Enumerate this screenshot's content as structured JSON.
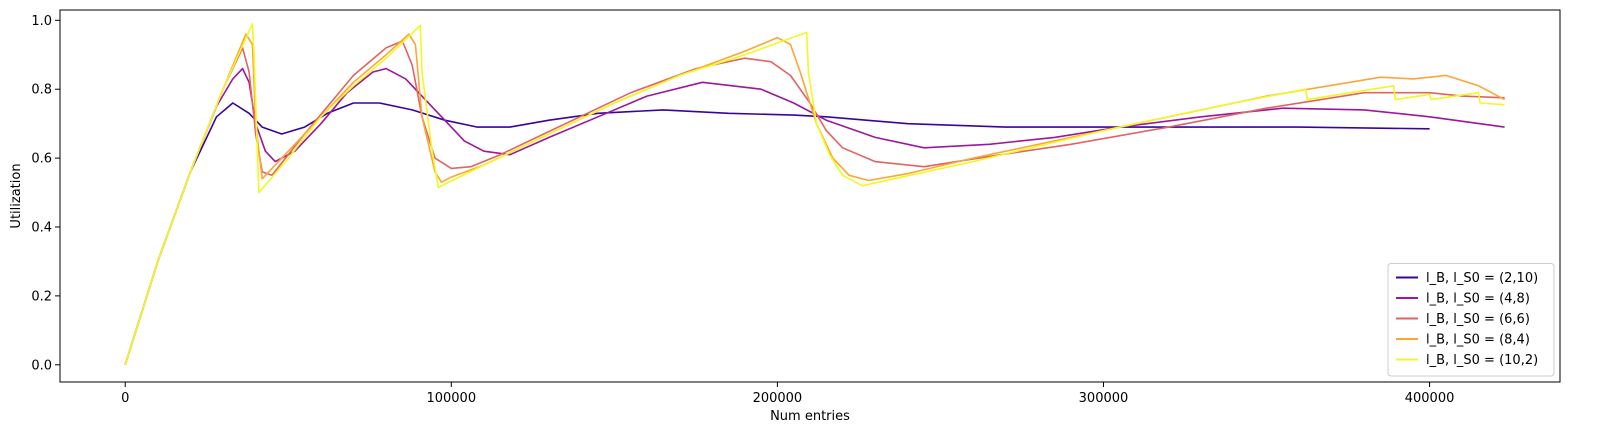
{
  "chart_data": {
    "type": "line",
    "title": "",
    "xlabel": "Num entries",
    "ylabel": "Utilization",
    "xlim": [
      -20000,
      440000
    ],
    "ylim": [
      -0.05,
      1.03
    ],
    "xticks": [
      0,
      100000,
      200000,
      300000,
      400000
    ],
    "yticks": [
      0.0,
      0.2,
      0.4,
      0.6,
      0.8,
      1.0
    ],
    "xtick_labels": [
      "0",
      "100000",
      "200000",
      "300000",
      "400000"
    ],
    "ytick_labels": [
      "0.0",
      "0.2",
      "0.4",
      "0.6",
      "0.8",
      "1.0"
    ],
    "grid": false,
    "legend_position": "lower-right",
    "series": [
      {
        "name": "l_B, l_S0 = (2,10)",
        "color": "#3a049a",
        "x": [
          0,
          10000,
          20000,
          28000,
          33000,
          38000,
          42000,
          48000,
          55000,
          62000,
          70000,
          78000,
          88000,
          98000,
          108000,
          118000,
          130000,
          145000,
          165000,
          185000,
          205000,
          215000,
          240000,
          270000,
          300000,
          330000,
          360000,
          400000
        ],
        "y": [
          0.0,
          0.3,
          0.56,
          0.72,
          0.76,
          0.73,
          0.69,
          0.67,
          0.69,
          0.73,
          0.76,
          0.76,
          0.74,
          0.71,
          0.69,
          0.69,
          0.71,
          0.73,
          0.74,
          0.73,
          0.725,
          0.72,
          0.7,
          0.69,
          0.69,
          0.69,
          0.69,
          0.685
        ]
      },
      {
        "name": "l_B, l_S0 = (4,8)",
        "color": "#9c179e",
        "x": [
          0,
          10000,
          20000,
          28000,
          33000,
          36000,
          38000,
          40000,
          43000,
          46000,
          52000,
          60000,
          68000,
          76000,
          80000,
          86000,
          92000,
          98000,
          104000,
          110000,
          118000,
          130000,
          145000,
          160000,
          177000,
          195000,
          205000,
          215000,
          230000,
          245000,
          265000,
          285000,
          305000,
          330000,
          355000,
          380000,
          400000,
          423000
        ],
        "y": [
          0.0,
          0.3,
          0.56,
          0.75,
          0.83,
          0.86,
          0.82,
          0.7,
          0.62,
          0.59,
          0.62,
          0.7,
          0.79,
          0.85,
          0.86,
          0.83,
          0.77,
          0.71,
          0.65,
          0.62,
          0.61,
          0.66,
          0.72,
          0.78,
          0.82,
          0.8,
          0.76,
          0.71,
          0.66,
          0.63,
          0.64,
          0.66,
          0.69,
          0.72,
          0.745,
          0.74,
          0.72,
          0.69
        ]
      },
      {
        "name": "l_B, l_S0 = (6,6)",
        "color": "#e16462",
        "x": [
          0,
          10000,
          20000,
          30000,
          36000,
          38000,
          40000,
          42000,
          45000,
          55000,
          70000,
          80000,
          85000,
          88000,
          91000,
          95000,
          100000,
          106000,
          115000,
          135000,
          155000,
          175000,
          190000,
          198000,
          204000,
          210000,
          215000,
          220000,
          230000,
          245000,
          265000,
          290000,
          320000,
          350000,
          380000,
          400000,
          410000,
          423000
        ],
        "y": [
          0.0,
          0.3,
          0.56,
          0.8,
          0.92,
          0.85,
          0.67,
          0.56,
          0.55,
          0.67,
          0.84,
          0.92,
          0.94,
          0.87,
          0.72,
          0.6,
          0.57,
          0.575,
          0.61,
          0.7,
          0.79,
          0.86,
          0.89,
          0.88,
          0.84,
          0.76,
          0.68,
          0.63,
          0.59,
          0.575,
          0.605,
          0.64,
          0.69,
          0.745,
          0.79,
          0.79,
          0.78,
          0.775
        ]
      },
      {
        "name": "l_B, l_S0 = (8,4)",
        "color": "#fca636",
        "x": [
          0,
          10000,
          20000,
          30000,
          37000,
          39000,
          40000,
          42000,
          50000,
          60000,
          70000,
          80000,
          87000,
          89000,
          91000,
          95000,
          97000,
          100000,
          110000,
          130000,
          150000,
          170000,
          190000,
          200000,
          204000,
          207000,
          212000,
          217000,
          222000,
          228000,
          240000,
          260000,
          290000,
          320000,
          350000,
          385000,
          395000,
          405000,
          415000,
          423000
        ],
        "y": [
          0.0,
          0.3,
          0.56,
          0.8,
          0.96,
          0.93,
          0.7,
          0.54,
          0.62,
          0.72,
          0.82,
          0.9,
          0.96,
          0.93,
          0.72,
          0.56,
          0.53,
          0.545,
          0.58,
          0.67,
          0.76,
          0.84,
          0.91,
          0.95,
          0.93,
          0.85,
          0.7,
          0.6,
          0.55,
          0.535,
          0.555,
          0.6,
          0.66,
          0.72,
          0.78,
          0.835,
          0.83,
          0.84,
          0.81,
          0.77
        ]
      },
      {
        "name": "l_B, l_S0 = (10,2)",
        "color": "#f0f921",
        "x": [
          0,
          10000,
          20000,
          30000,
          39000,
          39500,
          41000,
          50000,
          60000,
          70000,
          80000,
          90500,
          91000,
          94000,
          96000,
          110000,
          130000,
          150000,
          170000,
          190000,
          209000,
          209500,
          212000,
          216000,
          220000,
          226000,
          260000,
          300000,
          340000,
          362000,
          362500,
          389000,
          389500,
          400000,
          400500,
          415000,
          415500,
          423000
        ],
        "y": [
          0.0,
          0.3,
          0.56,
          0.8,
          0.99,
          0.9,
          0.5,
          0.6,
          0.72,
          0.81,
          0.89,
          0.985,
          0.85,
          0.63,
          0.515,
          0.58,
          0.67,
          0.76,
          0.84,
          0.9,
          0.965,
          0.85,
          0.7,
          0.61,
          0.55,
          0.52,
          0.59,
          0.68,
          0.76,
          0.8,
          0.77,
          0.81,
          0.77,
          0.785,
          0.77,
          0.79,
          0.76,
          0.755
        ]
      }
    ]
  }
}
